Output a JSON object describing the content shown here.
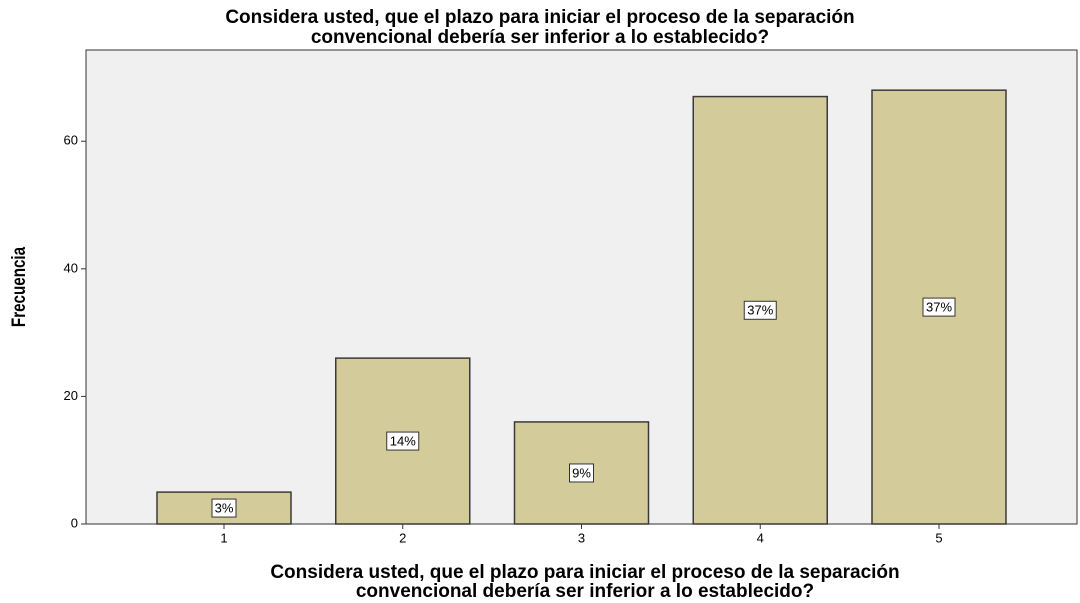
{
  "chart_data": {
    "type": "bar",
    "title": [
      "Considera usted, que el plazo para iniciar el proceso de la separación",
      "convencional debería ser inferior a lo establecido?"
    ],
    "x_label": [
      "Considera usted, que el plazo para iniciar el proceso de la separación",
      "convencional debería ser inferior a lo establecido?"
    ],
    "y_label": "Frecuencia",
    "categories": [
      "1",
      "2",
      "3",
      "4",
      "5"
    ],
    "values": [
      5,
      26,
      16,
      67,
      68
    ],
    "percent": {
      "values": [
        3,
        14,
        9,
        37,
        37
      ],
      "value_labels": [
        "3%",
        "14%",
        "9%",
        "37%",
        "37%"
      ]
    },
    "color": "#d3cc9a",
    "ylim": [
      0,
      74.3
    ],
    "yticks": [
      0,
      20,
      40,
      60
    ],
    "grid": false
  }
}
